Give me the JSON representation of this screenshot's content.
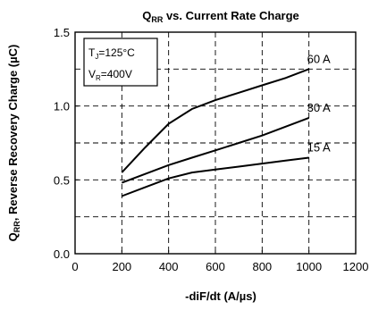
{
  "chart_data": {
    "type": "line",
    "title": {
      "main": "Q",
      "sub": "RR",
      "rest": " vs. Current Rate Charge"
    },
    "xlabel": "-diF/dt (A/µs)",
    "ylabel": {
      "main": "Q",
      "sub": "RR",
      "rest": ", Reverse Recovery Charge (µC)"
    },
    "xlim": [
      0,
      1200
    ],
    "ylim": [
      0,
      1.5
    ],
    "xticks": [
      0,
      200,
      400,
      600,
      800,
      1000,
      1200
    ],
    "yticks": [
      0.0,
      0.5,
      1.0,
      1.5
    ],
    "xtick_labels": [
      "0",
      "200",
      "400",
      "600",
      "800",
      "1000",
      "1200"
    ],
    "ytick_labels": [
      "0.0",
      "0.5",
      "1.0",
      "1.5"
    ],
    "grid_x": [
      200,
      400,
      600,
      800,
      1000
    ],
    "grid_y": [
      0.25,
      0.5,
      0.75,
      1.0,
      1.25
    ],
    "grid": true,
    "conditions": [
      {
        "main": "T",
        "sub": "J",
        "rest": "=125°C"
      },
      {
        "main": "V",
        "sub": "R",
        "rest": "=400V"
      }
    ],
    "series": [
      {
        "name": "60 A",
        "x": [
          200,
          300,
          400,
          500,
          600,
          700,
          800,
          900,
          1000
        ],
        "y": [
          0.55,
          0.72,
          0.88,
          0.98,
          1.04,
          1.09,
          1.14,
          1.19,
          1.25
        ]
      },
      {
        "name": "30 A",
        "x": [
          200,
          300,
          400,
          500,
          600,
          700,
          800,
          900,
          1000
        ],
        "y": [
          0.48,
          0.54,
          0.6,
          0.65,
          0.7,
          0.75,
          0.8,
          0.86,
          0.92
        ]
      },
      {
        "name": "15 A",
        "x": [
          200,
          300,
          400,
          500,
          600,
          700,
          800,
          900,
          1000
        ],
        "y": [
          0.39,
          0.45,
          0.51,
          0.55,
          0.57,
          0.59,
          0.61,
          0.63,
          0.65
        ]
      }
    ]
  }
}
